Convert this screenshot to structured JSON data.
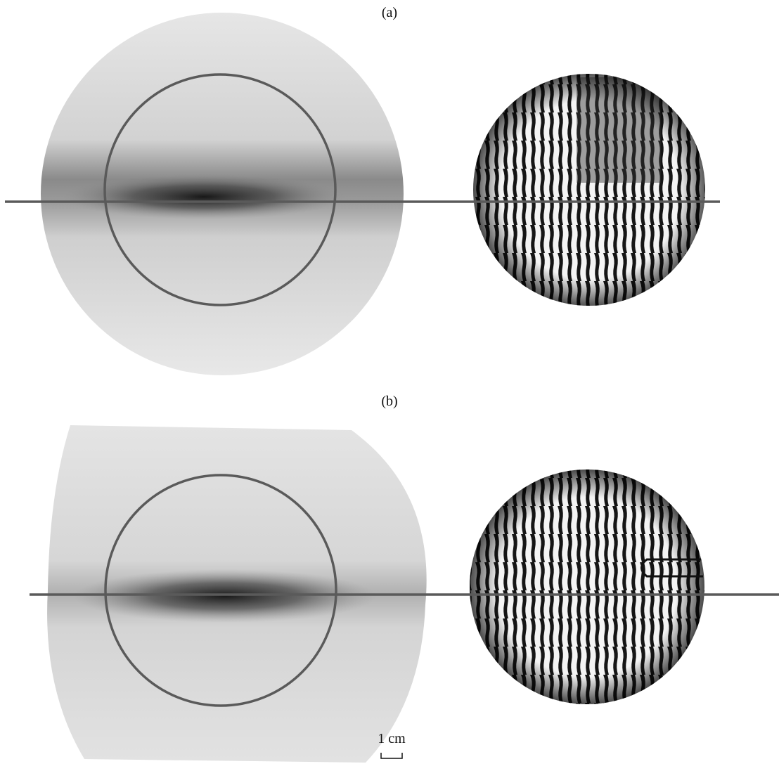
{
  "panels": [
    {
      "label": "(a)"
    },
    {
      "label": "(b)"
    }
  ],
  "scale_bar": {
    "label": "1 cm"
  }
}
